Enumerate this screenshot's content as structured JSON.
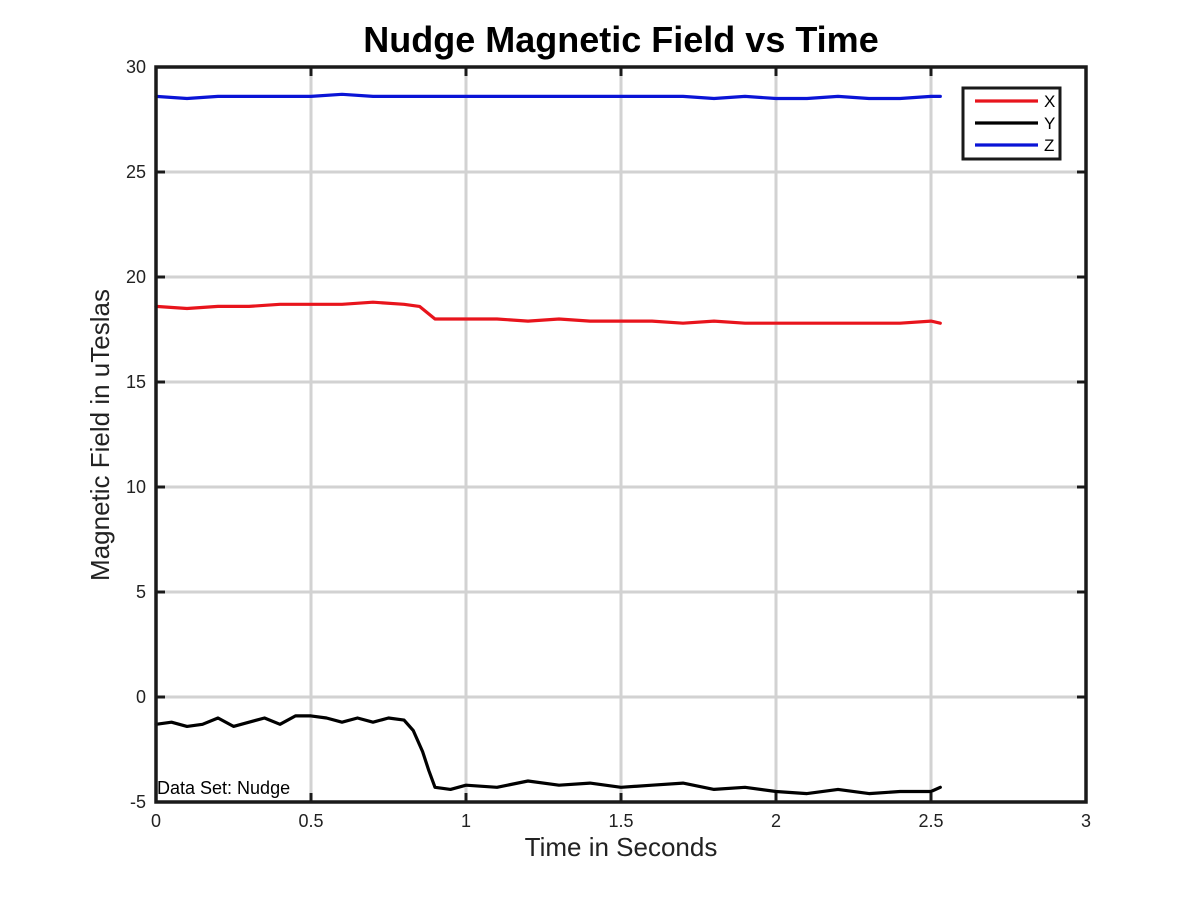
{
  "chart_data": {
    "type": "line",
    "title": "Nudge Magnetic Field vs Time",
    "xlabel": "Time in Seconds",
    "ylabel": "Magnetic Field in uTeslas",
    "xlim": [
      0,
      3
    ],
    "ylim": [
      -5,
      30
    ],
    "xticks": [
      0,
      0.5,
      1,
      1.5,
      2,
      2.5,
      3
    ],
    "xtick_labels": [
      "0",
      "0.5",
      "1",
      "1.5",
      "2",
      "2.5",
      "3"
    ],
    "yticks": [
      -5,
      0,
      5,
      10,
      15,
      20,
      25,
      30
    ],
    "ytick_labels": [
      "-5",
      "0",
      "5",
      "10",
      "15",
      "20",
      "25",
      "30"
    ],
    "grid": true,
    "legend_position": "top-right",
    "annotation": "Data Set: Nudge",
    "series": [
      {
        "name": "X",
        "color": "#e8141c",
        "x": [
          0,
          0.1,
          0.2,
          0.3,
          0.4,
          0.5,
          0.6,
          0.7,
          0.8,
          0.85,
          0.9,
          1.0,
          1.1,
          1.2,
          1.3,
          1.4,
          1.5,
          1.6,
          1.7,
          1.8,
          1.9,
          2.0,
          2.1,
          2.2,
          2.3,
          2.4,
          2.5,
          2.53
        ],
        "y": [
          18.6,
          18.5,
          18.6,
          18.6,
          18.7,
          18.7,
          18.7,
          18.8,
          18.7,
          18.6,
          18.0,
          18.0,
          18.0,
          17.9,
          18.0,
          17.9,
          17.9,
          17.9,
          17.8,
          17.9,
          17.8,
          17.8,
          17.8,
          17.8,
          17.8,
          17.8,
          17.9,
          17.8
        ]
      },
      {
        "name": "Y",
        "color": "#000000",
        "x": [
          0,
          0.05,
          0.1,
          0.15,
          0.2,
          0.25,
          0.3,
          0.35,
          0.4,
          0.45,
          0.5,
          0.55,
          0.6,
          0.65,
          0.7,
          0.75,
          0.8,
          0.83,
          0.86,
          0.88,
          0.9,
          0.95,
          1.0,
          1.1,
          1.2,
          1.3,
          1.4,
          1.5,
          1.6,
          1.7,
          1.8,
          1.9,
          2.0,
          2.1,
          2.2,
          2.3,
          2.4,
          2.5,
          2.53
        ],
        "y": [
          -1.3,
          -1.2,
          -1.4,
          -1.3,
          -1.0,
          -1.4,
          -1.2,
          -1.0,
          -1.3,
          -0.9,
          -0.9,
          -1.0,
          -1.2,
          -1.0,
          -1.2,
          -1.0,
          -1.1,
          -1.6,
          -2.6,
          -3.5,
          -4.3,
          -4.4,
          -4.2,
          -4.3,
          -4.0,
          -4.2,
          -4.1,
          -4.3,
          -4.2,
          -4.1,
          -4.4,
          -4.3,
          -4.5,
          -4.6,
          -4.4,
          -4.6,
          -4.5,
          -4.5,
          -4.3
        ]
      },
      {
        "name": "Z",
        "color": "#0a14d6",
        "x": [
          0,
          0.1,
          0.2,
          0.3,
          0.4,
          0.5,
          0.6,
          0.7,
          0.8,
          0.9,
          1.0,
          1.1,
          1.2,
          1.3,
          1.4,
          1.5,
          1.6,
          1.7,
          1.8,
          1.9,
          2.0,
          2.1,
          2.2,
          2.3,
          2.4,
          2.5,
          2.53
        ],
        "y": [
          28.6,
          28.5,
          28.6,
          28.6,
          28.6,
          28.6,
          28.7,
          28.6,
          28.6,
          28.6,
          28.6,
          28.6,
          28.6,
          28.6,
          28.6,
          28.6,
          28.6,
          28.6,
          28.5,
          28.6,
          28.5,
          28.5,
          28.6,
          28.5,
          28.5,
          28.6,
          28.6
        ]
      }
    ]
  }
}
